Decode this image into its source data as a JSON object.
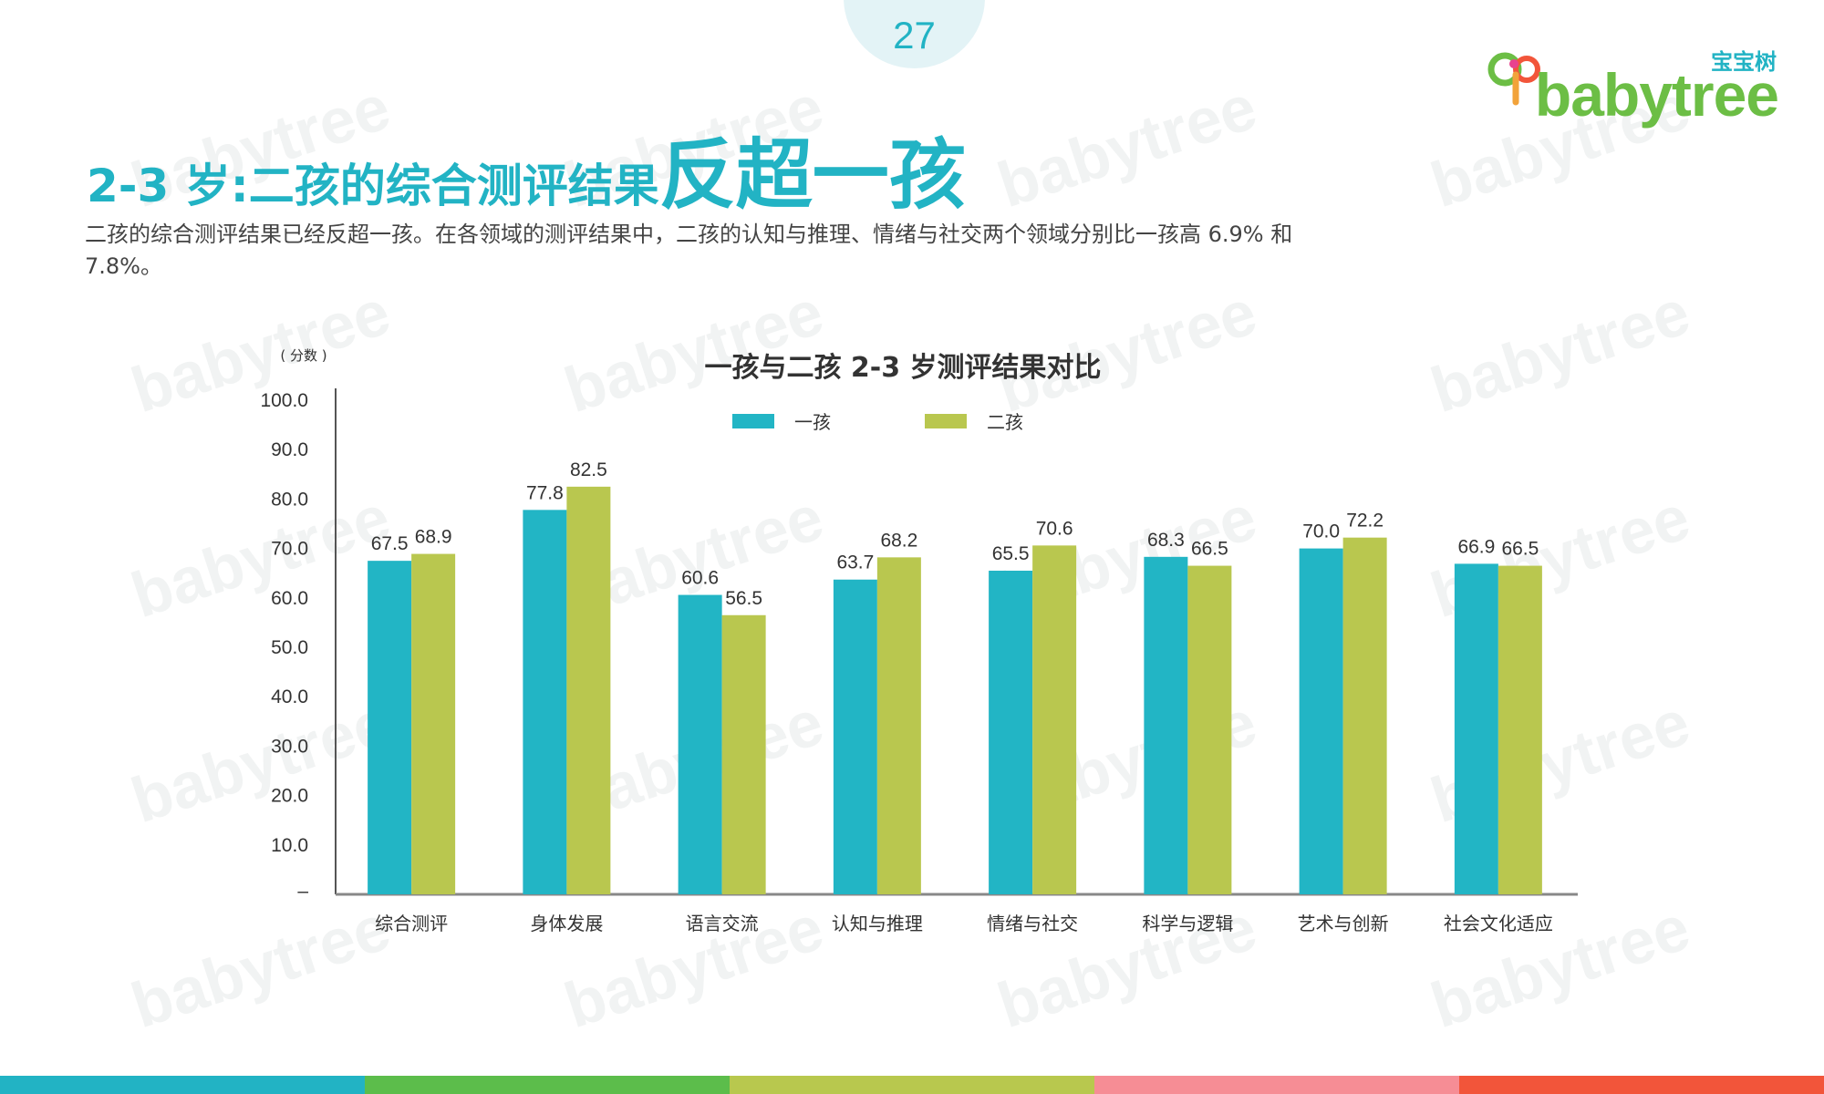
{
  "page": {
    "number": "27",
    "logo_cn": "宝宝树",
    "logo_en": "babytree",
    "title_prefix": "2-3 岁:二孩的综合测评结果",
    "title_emphasis": "反超一孩",
    "description": "二孩的综合测评结果已经反超一孩。在各领域的测评结果中，二孩的认知与推理、情绪与社交两个领域分别比一孩高 6.9% 和 7.8%。",
    "watermark": "babytree",
    "bottom_bar_colors": [
      "#22b3c4",
      "#5cbd4b",
      "#b8c84e",
      "#f68d95",
      "#f2553a"
    ]
  },
  "chart_data": {
    "type": "bar",
    "title": "一孩与二孩 2-3 岁测评结果对比",
    "ylabel": "( 分数 )",
    "xlabel": "",
    "ylim": [
      0,
      100
    ],
    "yticks": [
      "–",
      "10.0",
      "20.0",
      "30.0",
      "40.0",
      "50.0",
      "60.0",
      "70.0",
      "80.0",
      "90.0",
      "100.0"
    ],
    "legend_position": "top-center",
    "categories": [
      "综合测评",
      "身体发展",
      "语言交流",
      "认知与推理",
      "情绪与社交",
      "科学与逻辑",
      "艺术与创新",
      "社会文化适应"
    ],
    "series": [
      {
        "name": "一孩",
        "color": "#22b5c5",
        "values": [
          67.5,
          77.8,
          60.6,
          63.7,
          65.5,
          68.3,
          70.0,
          66.9
        ],
        "labels": [
          "67.5",
          "77.8",
          "60.6",
          "63.7",
          "65.5",
          "68.3",
          "70.0",
          "66.9"
        ]
      },
      {
        "name": "二孩",
        "color": "#b9c74f",
        "values": [
          68.9,
          82.5,
          56.5,
          68.2,
          70.6,
          66.5,
          72.2,
          66.5
        ],
        "labels": [
          "68.9",
          "82.5",
          "56.5",
          "68.2",
          "70.6",
          "66.5",
          "72.2",
          "66.5"
        ]
      }
    ]
  }
}
